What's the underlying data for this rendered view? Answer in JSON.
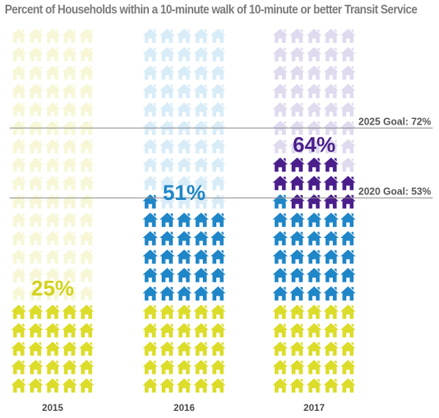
{
  "chart_data": {
    "type": "pictograph",
    "title": "Percent of Households within a 10-minute walk of 10-minute or better Transit Service",
    "units_per_icon": 1,
    "total_icons": 100,
    "categories": [
      "2015",
      "2016",
      "2017"
    ],
    "series": [
      {
        "category": "2015",
        "value": 25,
        "label": "25%",
        "segments": [
          {
            "count": 25,
            "color": "#dcdc2a"
          }
        ],
        "empty_color": "#f7f7d7",
        "label_color": "#d2d21e"
      },
      {
        "category": "2016",
        "value": 51,
        "label": "51%",
        "segments": [
          {
            "count": 25,
            "color": "#dcdc2a"
          },
          {
            "count": 26,
            "color": "#1f86c8"
          }
        ],
        "empty_color": "#d8ecf8",
        "label_color": "#1f86c8"
      },
      {
        "category": "2017",
        "value": 64,
        "label": "64%",
        "segments": [
          {
            "count": 25,
            "color": "#dcdc2a"
          },
          {
            "count": 26,
            "color": "#1f86c8"
          },
          {
            "count": 13,
            "color": "#4a1f8c"
          }
        ],
        "empty_color": "#e0daef",
        "label_color": "#4a1f8c"
      }
    ],
    "goals": [
      {
        "label": "2025 Goal: 72%",
        "value": 72
      },
      {
        "label": "2020 Goal: 53%",
        "value": 53
      }
    ],
    "icon": "house-icon"
  }
}
